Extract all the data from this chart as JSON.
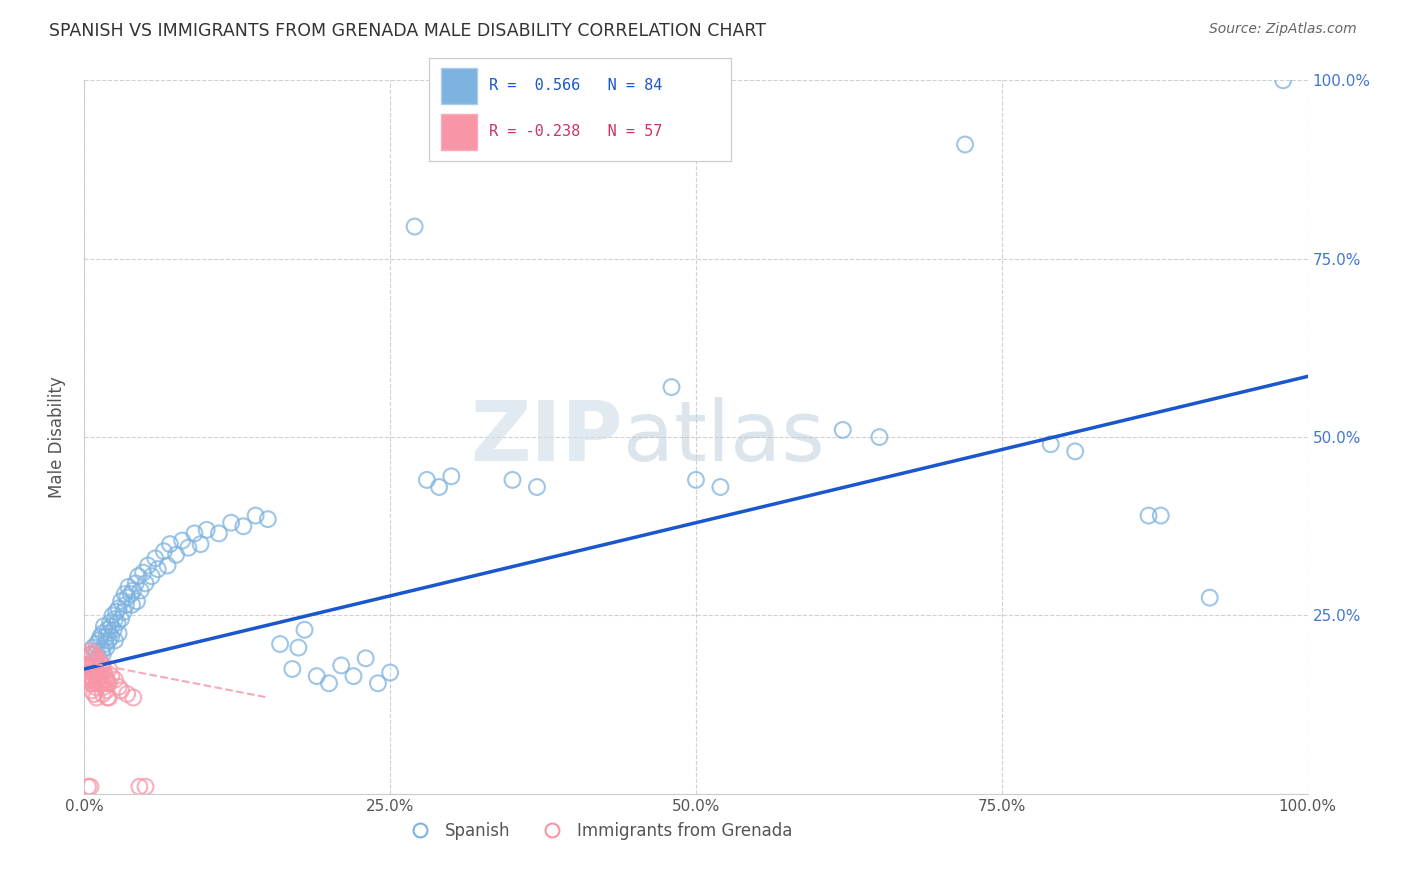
{
  "title": "SPANISH VS IMMIGRANTS FROM GRENADA MALE DISABILITY CORRELATION CHART",
  "source": "Source: ZipAtlas.com",
  "ylabel": "Male Disability",
  "xlim": [
    0.0,
    1.0
  ],
  "ylim": [
    0.0,
    1.0
  ],
  "xtick_labels": [
    "0.0%",
    "25.0%",
    "50.0%",
    "75.0%",
    "100.0%"
  ],
  "xtick_positions": [
    0.0,
    0.25,
    0.5,
    0.75,
    1.0
  ],
  "ytick_positions": [
    0.25,
    0.5,
    0.75,
    1.0
  ],
  "ytick_right_labels": [
    "25.0%",
    "50.0%",
    "75.0%",
    "100.0%"
  ],
  "blue_color": "#7EB3E0",
  "pink_color": "#F896A8",
  "line_blue": "#1A56CC",
  "line_pink": "#F8A0B0",
  "watermark_zip": "ZIP",
  "watermark_atlas": "atlas",
  "blue_line_x0": 0.0,
  "blue_line_y0": 0.175,
  "blue_line_x1": 1.0,
  "blue_line_y1": 0.585,
  "pink_line_x0": 0.0,
  "pink_line_y0": 0.185,
  "pink_line_x1": 0.15,
  "pink_line_y1": 0.135,
  "blue_points": [
    [
      0.005,
      0.195
    ],
    [
      0.007,
      0.205
    ],
    [
      0.008,
      0.185
    ],
    [
      0.009,
      0.175
    ],
    [
      0.01,
      0.21
    ],
    [
      0.01,
      0.2
    ],
    [
      0.012,
      0.215
    ],
    [
      0.012,
      0.19
    ],
    [
      0.013,
      0.22
    ],
    [
      0.014,
      0.2
    ],
    [
      0.015,
      0.225
    ],
    [
      0.015,
      0.195
    ],
    [
      0.016,
      0.235
    ],
    [
      0.017,
      0.21
    ],
    [
      0.018,
      0.22
    ],
    [
      0.018,
      0.205
    ],
    [
      0.019,
      0.23
    ],
    [
      0.02,
      0.215
    ],
    [
      0.02,
      0.225
    ],
    [
      0.021,
      0.24
    ],
    [
      0.022,
      0.22
    ],
    [
      0.022,
      0.235
    ],
    [
      0.023,
      0.25
    ],
    [
      0.024,
      0.23
    ],
    [
      0.025,
      0.245
    ],
    [
      0.025,
      0.215
    ],
    [
      0.026,
      0.255
    ],
    [
      0.027,
      0.24
    ],
    [
      0.028,
      0.26
    ],
    [
      0.028,
      0.225
    ],
    [
      0.03,
      0.27
    ],
    [
      0.03,
      0.245
    ],
    [
      0.032,
      0.255
    ],
    [
      0.033,
      0.28
    ],
    [
      0.034,
      0.265
    ],
    [
      0.035,
      0.275
    ],
    [
      0.036,
      0.29
    ],
    [
      0.038,
      0.28
    ],
    [
      0.039,
      0.265
    ],
    [
      0.04,
      0.285
    ],
    [
      0.042,
      0.295
    ],
    [
      0.043,
      0.27
    ],
    [
      0.044,
      0.305
    ],
    [
      0.046,
      0.285
    ],
    [
      0.048,
      0.31
    ],
    [
      0.05,
      0.295
    ],
    [
      0.052,
      0.32
    ],
    [
      0.055,
      0.305
    ],
    [
      0.058,
      0.33
    ],
    [
      0.06,
      0.315
    ],
    [
      0.065,
      0.34
    ],
    [
      0.068,
      0.32
    ],
    [
      0.07,
      0.35
    ],
    [
      0.075,
      0.335
    ],
    [
      0.08,
      0.355
    ],
    [
      0.085,
      0.345
    ],
    [
      0.09,
      0.365
    ],
    [
      0.095,
      0.35
    ],
    [
      0.1,
      0.37
    ],
    [
      0.11,
      0.365
    ],
    [
      0.12,
      0.38
    ],
    [
      0.13,
      0.375
    ],
    [
      0.14,
      0.39
    ],
    [
      0.15,
      0.385
    ],
    [
      0.16,
      0.21
    ],
    [
      0.17,
      0.175
    ],
    [
      0.175,
      0.205
    ],
    [
      0.18,
      0.23
    ],
    [
      0.19,
      0.165
    ],
    [
      0.2,
      0.155
    ],
    [
      0.21,
      0.18
    ],
    [
      0.22,
      0.165
    ],
    [
      0.23,
      0.19
    ],
    [
      0.24,
      0.155
    ],
    [
      0.25,
      0.17
    ],
    [
      0.27,
      0.795
    ],
    [
      0.28,
      0.44
    ],
    [
      0.29,
      0.43
    ],
    [
      0.3,
      0.445
    ],
    [
      0.35,
      0.44
    ],
    [
      0.37,
      0.43
    ],
    [
      0.48,
      0.57
    ],
    [
      0.5,
      0.44
    ],
    [
      0.52,
      0.43
    ],
    [
      0.62,
      0.51
    ],
    [
      0.65,
      0.5
    ],
    [
      0.72,
      0.91
    ],
    [
      0.79,
      0.49
    ],
    [
      0.81,
      0.48
    ],
    [
      0.87,
      0.39
    ],
    [
      0.88,
      0.39
    ],
    [
      0.92,
      0.275
    ],
    [
      0.98,
      1.0
    ]
  ],
  "pink_points": [
    [
      0.003,
      0.19
    ],
    [
      0.003,
      0.175
    ],
    [
      0.004,
      0.195
    ],
    [
      0.004,
      0.16
    ],
    [
      0.005,
      0.2
    ],
    [
      0.005,
      0.18
    ],
    [
      0.005,
      0.165
    ],
    [
      0.005,
      0.155
    ],
    [
      0.006,
      0.195
    ],
    [
      0.006,
      0.175
    ],
    [
      0.006,
      0.16
    ],
    [
      0.006,
      0.145
    ],
    [
      0.007,
      0.185
    ],
    [
      0.007,
      0.17
    ],
    [
      0.007,
      0.155
    ],
    [
      0.008,
      0.195
    ],
    [
      0.008,
      0.175
    ],
    [
      0.008,
      0.16
    ],
    [
      0.008,
      0.14
    ],
    [
      0.009,
      0.185
    ],
    [
      0.009,
      0.165
    ],
    [
      0.009,
      0.15
    ],
    [
      0.01,
      0.19
    ],
    [
      0.01,
      0.17
    ],
    [
      0.01,
      0.155
    ],
    [
      0.01,
      0.135
    ],
    [
      0.011,
      0.18
    ],
    [
      0.011,
      0.16
    ],
    [
      0.012,
      0.175
    ],
    [
      0.012,
      0.155
    ],
    [
      0.013,
      0.185
    ],
    [
      0.013,
      0.165
    ],
    [
      0.014,
      0.175
    ],
    [
      0.014,
      0.155
    ],
    [
      0.015,
      0.18
    ],
    [
      0.015,
      0.16
    ],
    [
      0.015,
      0.14
    ],
    [
      0.016,
      0.17
    ],
    [
      0.016,
      0.15
    ],
    [
      0.017,
      0.165
    ],
    [
      0.018,
      0.16
    ],
    [
      0.018,
      0.145
    ],
    [
      0.019,
      0.155
    ],
    [
      0.019,
      0.135
    ],
    [
      0.02,
      0.175
    ],
    [
      0.02,
      0.155
    ],
    [
      0.02,
      0.135
    ],
    [
      0.022,
      0.165
    ],
    [
      0.025,
      0.16
    ],
    [
      0.028,
      0.15
    ],
    [
      0.03,
      0.145
    ],
    [
      0.035,
      0.14
    ],
    [
      0.04,
      0.135
    ],
    [
      0.045,
      0.01
    ],
    [
      0.05,
      0.01
    ],
    [
      0.003,
      0.01
    ],
    [
      0.005,
      0.01
    ]
  ]
}
